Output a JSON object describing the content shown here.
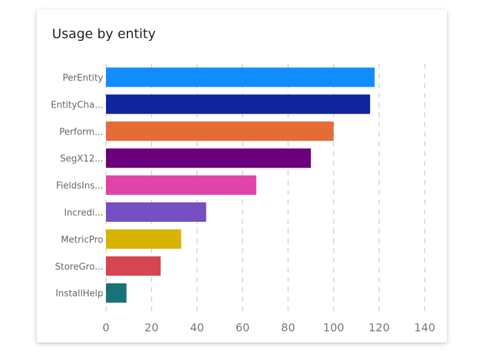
{
  "chart_data": {
    "type": "bar",
    "orientation": "horizontal",
    "title": "Usage by entity",
    "categories": [
      "PerEntity",
      "EntityCha...",
      "Perform...",
      "SegX12...",
      "FieldsIns...",
      "Incredi...",
      "MetricPro",
      "StoreGro...",
      "InstallHelp"
    ],
    "values": [
      118,
      116,
      100,
      90,
      66,
      44,
      33,
      24,
      9
    ],
    "colors": [
      "#118dff",
      "#12239e",
      "#e66c37",
      "#6b007b",
      "#e044a7",
      "#744ec2",
      "#d9b300",
      "#d64550",
      "#197278"
    ],
    "xlim": [
      0,
      140
    ],
    "xticks": [
      "0",
      "20",
      "40",
      "60",
      "80",
      "100",
      "120",
      "140"
    ],
    "grid": true
  }
}
